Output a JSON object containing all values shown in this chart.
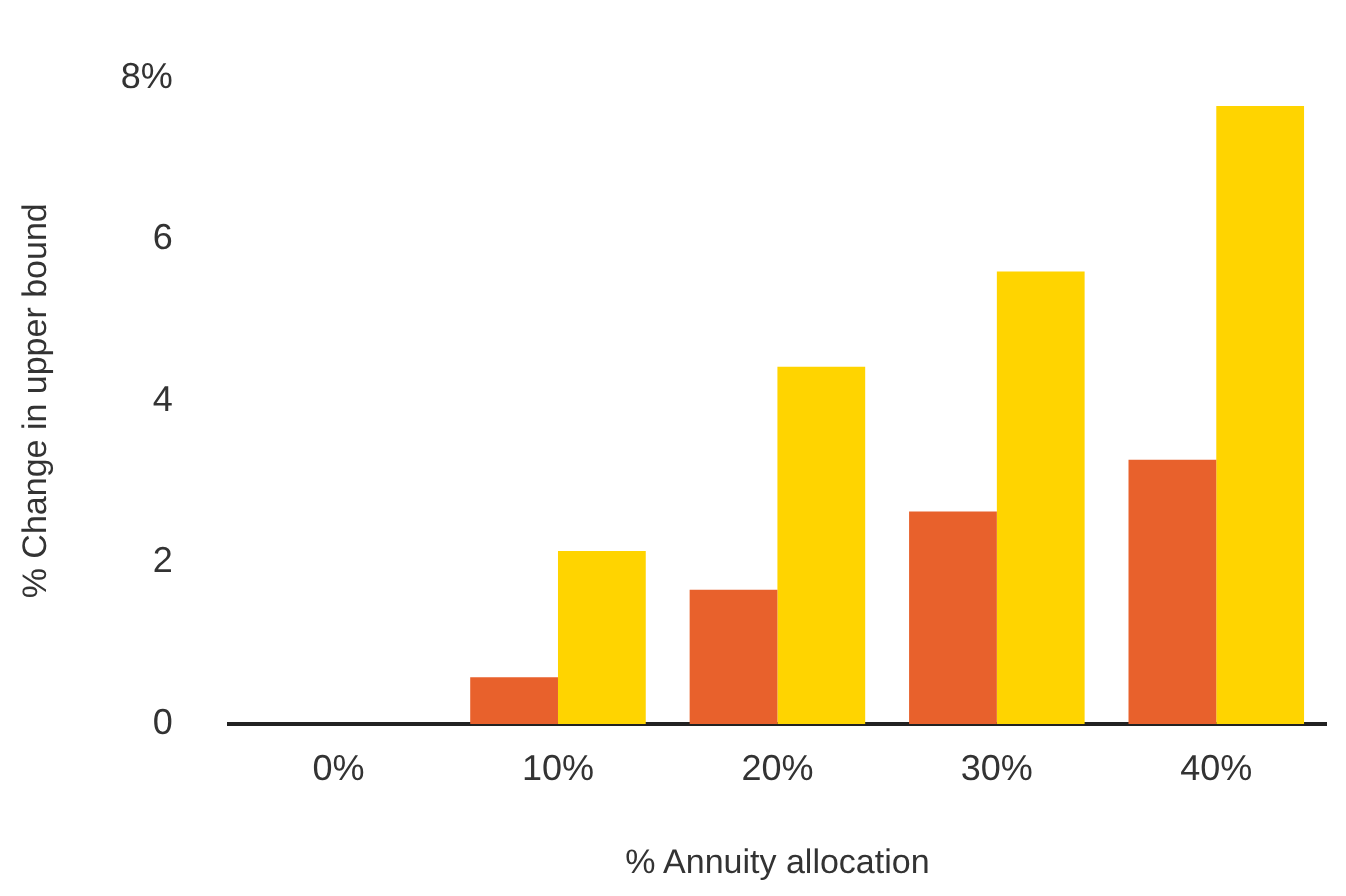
{
  "chart_data": {
    "type": "bar",
    "xlabel": "% Annuity allocation",
    "ylabel": "% Change in upper bound",
    "categories": [
      "0%",
      "10%",
      "20%",
      "30%",
      "40%"
    ],
    "series": [
      {
        "color": "#e8612c",
        "values": [
          0,
          0.58,
          1.66,
          2.63,
          3.27
        ]
      },
      {
        "color": "#ffd400",
        "values": [
          0,
          2.14,
          4.42,
          5.6,
          7.65
        ]
      }
    ],
    "ylim": [
      0,
      8
    ],
    "yticks": [
      0,
      2,
      4,
      6,
      {
        "value": 8,
        "label": "8%"
      }
    ],
    "grid": false,
    "legend": false
  }
}
